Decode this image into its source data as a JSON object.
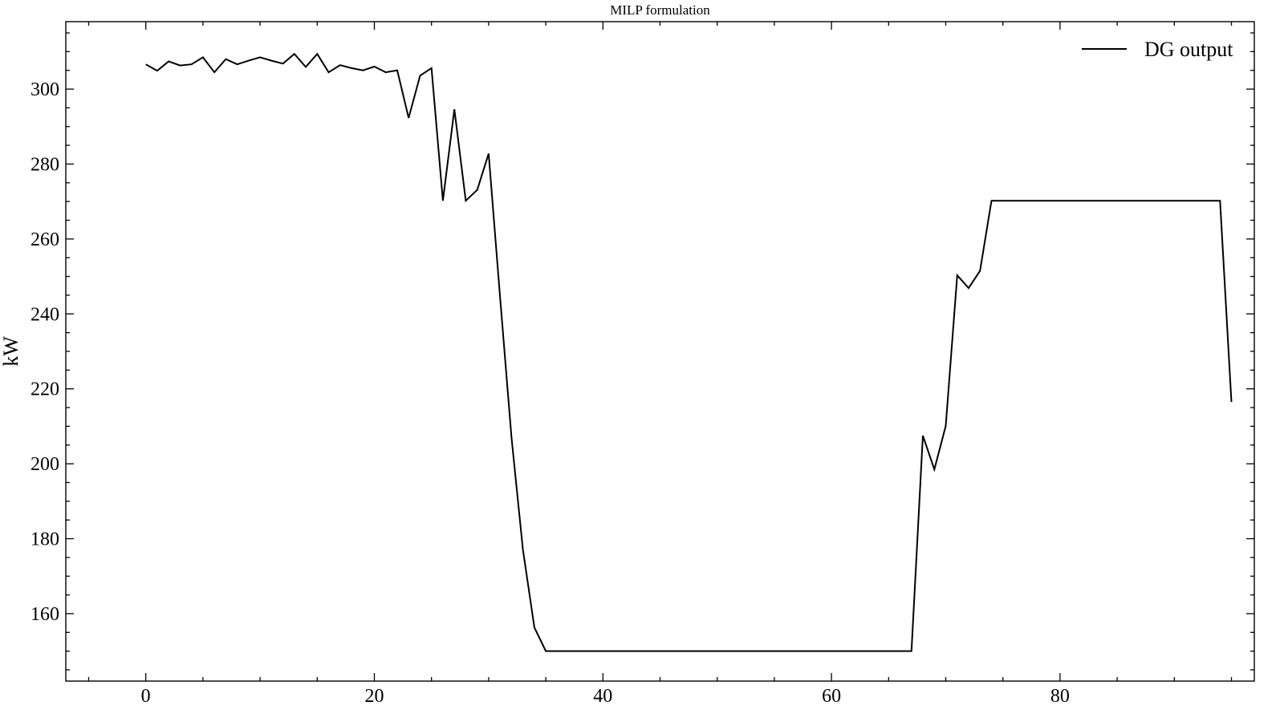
{
  "chart_data": {
    "type": "line",
    "title": "MILP formulation",
    "xlabel": "",
    "ylabel": "kW",
    "xlim": [
      -7,
      97
    ],
    "ylim": [
      142,
      318
    ],
    "xticks": [
      0,
      20,
      40,
      60,
      80
    ],
    "yticks": [
      160,
      180,
      200,
      220,
      240,
      260,
      280,
      300
    ],
    "xticks_minor_step": 5,
    "yticks_minor_step": 5,
    "tick_direction": "in",
    "ticks_on_all_sides": true,
    "grid": false,
    "legend": {
      "position": "top-right",
      "frame": false
    },
    "colors": {
      "line": "#000000",
      "axes": "#000000",
      "background": "#ffffff"
    },
    "series": [
      {
        "name": "DG output",
        "x": [
          0,
          1,
          2,
          3,
          4,
          5,
          6,
          7,
          8,
          9,
          10,
          11,
          12,
          13,
          14,
          15,
          16,
          17,
          18,
          19,
          20,
          21,
          22,
          23,
          24,
          25,
          26,
          27,
          28,
          29,
          30,
          31,
          32,
          33,
          34,
          35,
          36,
          37,
          38,
          39,
          40,
          41,
          42,
          43,
          44,
          45,
          46,
          47,
          48,
          49,
          50,
          51,
          52,
          53,
          54,
          55,
          56,
          57,
          58,
          59,
          60,
          61,
          62,
          63,
          64,
          65,
          66,
          67,
          68,
          69,
          70,
          71,
          72,
          73,
          74,
          75,
          76,
          77,
          78,
          79,
          80,
          81,
          82,
          83,
          84,
          85,
          86,
          87,
          88,
          89,
          90,
          91,
          92,
          93,
          94,
          95
        ],
        "values": [
          306.6,
          304.9,
          307.4,
          306.3,
          306.6,
          308.5,
          304.5,
          308.0,
          306.6,
          307.6,
          308.5,
          307.6,
          306.8,
          309.4,
          305.9,
          309.4,
          304.5,
          306.4,
          305.6,
          305.0,
          306.0,
          304.5,
          305.0,
          292.3,
          303.6,
          305.6,
          270.2,
          294.6,
          270.2,
          273.1,
          282.8,
          244.6,
          207.0,
          177.1,
          156.3,
          150.0,
          150.0,
          150.0,
          150.0,
          150.0,
          150.0,
          150.0,
          150.0,
          150.0,
          150.0,
          150.0,
          150.0,
          150.0,
          150.0,
          150.0,
          150.0,
          150.0,
          150.0,
          150.0,
          150.0,
          150.0,
          150.0,
          150.0,
          150.0,
          150.0,
          150.0,
          150.0,
          150.0,
          150.0,
          150.0,
          150.0,
          150.0,
          150.0,
          207.5,
          198.5,
          210.1,
          250.3,
          246.9,
          251.5,
          270.2,
          270.2,
          270.2,
          270.2,
          270.2,
          270.2,
          270.2,
          270.2,
          270.2,
          270.2,
          270.2,
          270.2,
          270.2,
          270.2,
          270.2,
          270.2,
          270.2,
          270.2,
          270.2,
          270.2,
          270.2,
          216.5
        ]
      }
    ]
  }
}
